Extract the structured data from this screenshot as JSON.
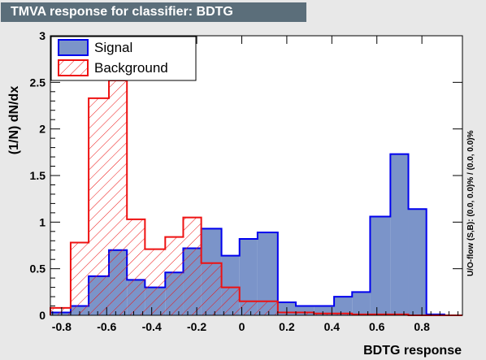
{
  "title": "TMVA response for classifier: BDTG",
  "side_note": "U/O-flow (S,B): (0.0, 0.0)% / (0.0, 0.0)%",
  "colors": {
    "background": "#e8e8e8",
    "title_bg": "#5b6e7a",
    "signal_fill": "#7b94c9",
    "signal_line": "#0000ee",
    "background_line": "#ee1111"
  },
  "chart_data": {
    "type": "histogram",
    "xlabel": "BDTG response",
    "ylabel": "(1/N) dN/dx",
    "xlim": [
      -0.85,
      0.98
    ],
    "ylim": [
      0,
      3
    ],
    "x_ticks": [
      "-0.8",
      "-0.6",
      "-0.4",
      "-0.2",
      "0",
      "0.2",
      "0.4",
      "0.6",
      "0.8"
    ],
    "x_tick_values": [
      -0.8,
      -0.6,
      -0.4,
      -0.2,
      0,
      0.2,
      0.4,
      0.6,
      0.8
    ],
    "y_ticks": [
      "0",
      "0.5",
      "1",
      "1.5",
      "2",
      "2.5",
      "3"
    ],
    "y_tick_values": [
      0,
      0.5,
      1,
      1.5,
      2,
      2.5,
      3
    ],
    "legend_position": "top-left",
    "bin_edges": [
      -0.85,
      -0.76,
      -0.68,
      -0.59,
      -0.51,
      -0.43,
      -0.34,
      -0.26,
      -0.18,
      -0.09,
      -0.01,
      0.07,
      0.16,
      0.24,
      0.32,
      0.41,
      0.49,
      0.57,
      0.66,
      0.74,
      0.82,
      0.9,
      0.98
    ],
    "series": [
      {
        "name": "Signal",
        "style": "filled",
        "values": [
          0.03,
          0.1,
          0.42,
          0.7,
          0.38,
          0.3,
          0.46,
          0.72,
          0.93,
          0.64,
          0.82,
          0.89,
          0.14,
          0.1,
          0.1,
          0.2,
          0.25,
          1.06,
          1.73,
          1.14,
          0.01,
          0.0
        ]
      },
      {
        "name": "Background",
        "style": "hatched",
        "values": [
          0.08,
          0.78,
          2.33,
          2.52,
          1.03,
          0.71,
          0.84,
          1.05,
          0.56,
          0.3,
          0.15,
          0.15,
          0.03,
          0.03,
          0.02,
          0.02,
          0.01,
          0.01,
          0.01,
          0.0,
          0.0,
          0.0
        ]
      }
    ]
  }
}
